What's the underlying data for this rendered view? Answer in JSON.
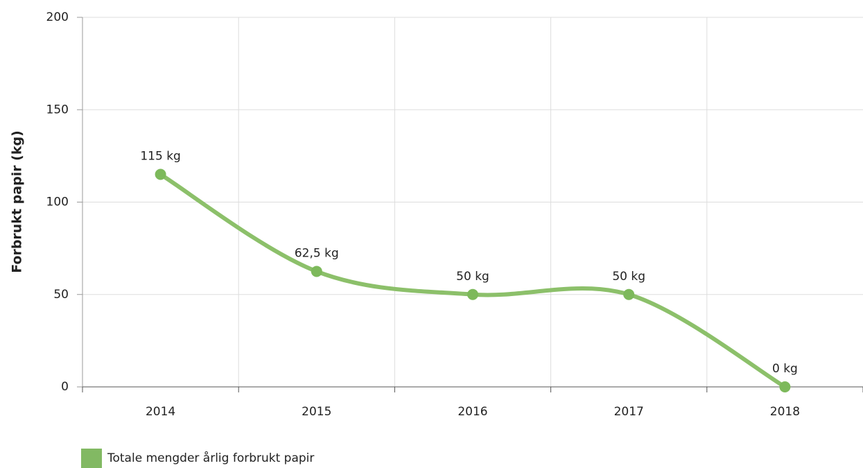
{
  "chart_data": {
    "type": "line",
    "y_label": "Forbrukt papir (kg)",
    "categories": [
      "2014",
      "2015",
      "2016",
      "2017",
      "2018"
    ],
    "series": [
      {
        "name": "Totale mengder årlig forbrukt papir",
        "color": "#8cc06a",
        "values": [
          115,
          62.5,
          50,
          50,
          0
        ],
        "value_labels": [
          "115 kg",
          "62,5 kg",
          "50 kg",
          "50 kg",
          "0 kg"
        ]
      }
    ],
    "ylim": [
      0,
      200
    ],
    "yticks": [
      0,
      50,
      100,
      150,
      200
    ],
    "grid": true,
    "smooth": true,
    "legend": "bottom-left"
  }
}
